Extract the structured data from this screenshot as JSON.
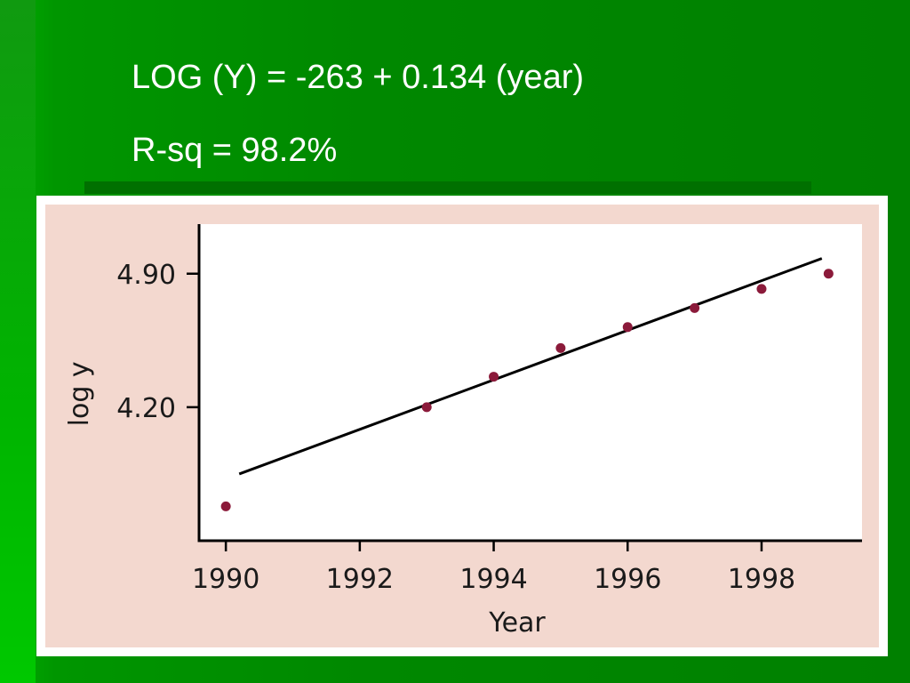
{
  "slide": {
    "equation": "LOG (Y) = -263 + 0.134 (year)",
    "r_squared": "R-sq = 98.2%"
  },
  "colors": {
    "background": "#008000",
    "figure_background": "#f3d8cf",
    "plot_background": "#ffffff",
    "point_color": "#8b1a3a",
    "line_color": "#000000"
  },
  "chart_data": {
    "type": "scatter",
    "title": "",
    "xlabel": "Year",
    "ylabel": "log y",
    "x_ticks": [
      1990,
      1992,
      1994,
      1996,
      1998
    ],
    "x_tick_labels": [
      "1990",
      "1992",
      "1994",
      "1996",
      "1998"
    ],
    "y_ticks": [
      4.2,
      4.9
    ],
    "y_tick_labels": [
      "4.20",
      "4.90"
    ],
    "xlim": [
      1989.6,
      1999.5
    ],
    "ylim": [
      3.5,
      5.16
    ],
    "grid": false,
    "series": [
      {
        "type": "scatter",
        "x": [
          1990,
          1993,
          1994,
          1995,
          1996,
          1997,
          1998,
          1999
        ],
        "y": [
          3.68,
          4.2,
          4.36,
          4.51,
          4.62,
          4.72,
          4.82,
          4.9
        ]
      }
    ],
    "fit_line": {
      "x": [
        1990.2,
        1998.9
      ],
      "y": [
        3.85,
        4.98
      ]
    }
  }
}
